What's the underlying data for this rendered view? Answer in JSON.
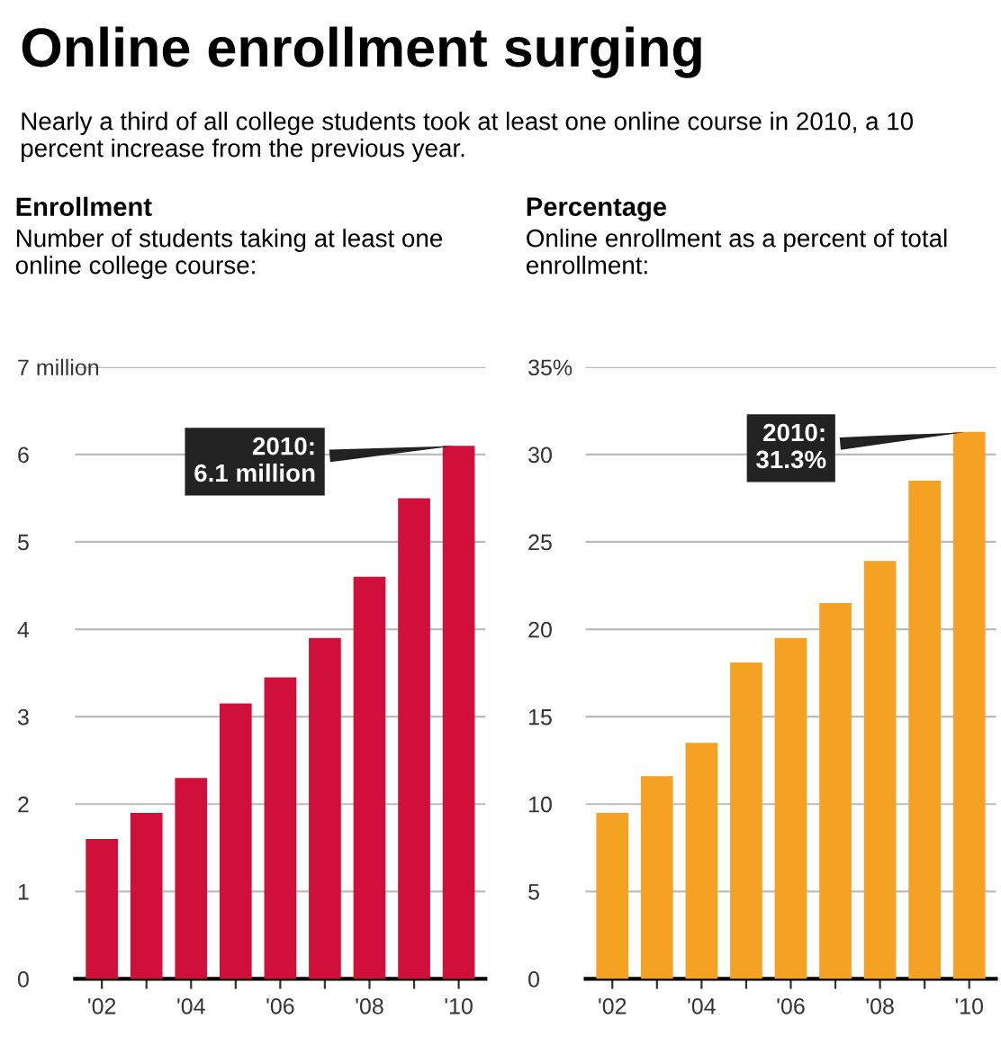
{
  "chart_data": [
    {
      "type": "other",
      "title": "Online enrollment surging",
      "subtitle": "Nearly a third of all college students took at least one online course in 2010, a 10 percent increase from the previous year."
    },
    {
      "type": "bar",
      "title": "Enrollment",
      "subtitle": "Number of students taking at least one online college course:",
      "categories": [
        "'02",
        null,
        "'04",
        null,
        "'06",
        null,
        "'08",
        null,
        "'10"
      ],
      "values": [
        1.6,
        1.9,
        2.3,
        3.15,
        3.45,
        3.9,
        4.6,
        5.5,
        6.1
      ],
      "color": "#d0103a",
      "ylim": [
        0,
        7
      ],
      "yticks": [
        0,
        1,
        2,
        3,
        4,
        5,
        6,
        {
          "value": 7,
          "label": "7 million"
        }
      ],
      "grid": "y",
      "annotations": [
        {
          "text": "2010:\n6.1 million",
          "x": "'10",
          "y": 6.1
        }
      ]
    },
    {
      "type": "bar",
      "title": "Percentage",
      "subtitle": "Online enrollment as a percent of total enrollment:",
      "categories": [
        "'02",
        null,
        "'04",
        null,
        "'06",
        null,
        "'08",
        null,
        "'10"
      ],
      "values": [
        9.5,
        11.6,
        13.5,
        18.1,
        19.5,
        21.5,
        23.9,
        28.5,
        31.3
      ],
      "color": "#f5a124",
      "ylim": [
        0,
        35
      ],
      "yticks": [
        0,
        5,
        10,
        15,
        20,
        25,
        30,
        {
          "value": 35,
          "label": "35%"
        }
      ],
      "grid": "y",
      "annotations": [
        {
          "text": "2010:\n31.3%",
          "x": "'10",
          "y": 31.3
        }
      ]
    }
  ]
}
